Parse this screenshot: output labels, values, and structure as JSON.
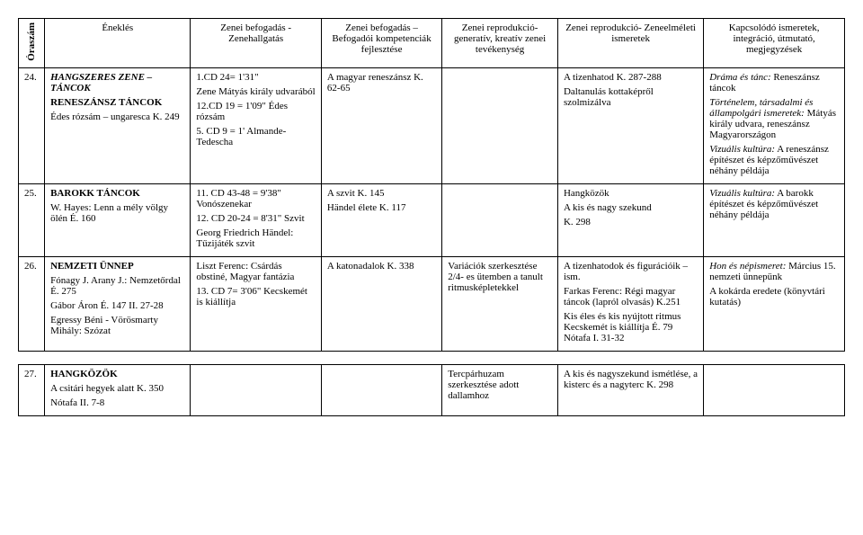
{
  "header": {
    "oraszam": "Óraszám",
    "c1": "Éneklés",
    "c2": "Zenei befogadás - Zenehallgatás",
    "c3": "Zenei befogadás – Befogadói kompetenciák fejlesztése",
    "c4": "Zenei reprodukció- generatív, kreatív zenei tevékenység",
    "c5": "Zenei reprodukció- Zeneelméleti ismeretek",
    "c6": "Kapcsolódó ismeretek, integráció, útmutató, megjegyzések"
  },
  "row24": {
    "num": "24.",
    "c1": {
      "title": "HANGSZERES ZENE – TÁNCOK",
      "l2": "RENESZÁNSZ TÁNCOK",
      "l3": "Édes rózsám – ungaresca K. 249"
    },
    "c2": {
      "l1": "1.CD 24= 1'31\"",
      "l2": "Zene Mátyás király udvarából",
      "l3": "12.CD 19 = 1'09\" Édes rózsám",
      "l4": "5. CD 9 = 1' Almande-Tedescha"
    },
    "c3": "A magyar reneszánsz K. 62-65",
    "c5": {
      "l1": "A tizenhatod K. 287-288",
      "l2": "Daltanulás kottaképről szolmizálva"
    },
    "c6": {
      "l1a": "Dráma és tánc:",
      "l1b": " Reneszánsz táncok",
      "l2a": "Történelem, társadalmi és állampolgári ismeretek:",
      "l2b": " Mátyás király udvara, reneszánsz Magyarországon",
      "l3a": "Vizuális kultúra:",
      "l3b": " A reneszánsz építészet és képzőművészet néhány példája"
    }
  },
  "row25": {
    "num": "25.",
    "c1": {
      "title": "BAROKK TÁNCOK",
      "l2": "W. Hayes: Lenn a mély völgy ölén É. 160"
    },
    "c2": {
      "l1": "11. CD 43-48 = 9'38\" Vonószenekar",
      "l2": "12. CD 20-24 = 8'31\" Szvit",
      "l3": "Georg Friedrich Händel: Tűzijáték szvit"
    },
    "c3": {
      "l1": "A szvit K. 145",
      "l2": "Händel élete K. 117"
    },
    "c5": {
      "l1": "Hangközök",
      "l2": "A kis és nagy szekund",
      "l3": "K. 298"
    },
    "c6": {
      "l1a": "Vizuális kultúra:",
      "l1b": " A barokk építészet és képzőművészet néhány példája"
    }
  },
  "row26": {
    "num": "26.",
    "c1": {
      "title": "NEMZETI ÜNNEP",
      "l2": "Fónagy J. Arany J.: Nemzetőrdal É. 275",
      "l3": "Gábor Áron É. 147 II. 27-28",
      "l4": "Egressy Béni - Vörösmarty Mihály: Szózat"
    },
    "c2": {
      "l1": "Liszt Ferenc: Csárdás obstiné, Magyar fantázia",
      "l2": "13. CD 7= 3'06\" Kecskemét is kiállítja"
    },
    "c3": "A katonadalok K. 338",
    "c4": "Variációk szerkesztése 2/4- es ütemben a tanult ritmusképletekkel",
    "c5": {
      "l1": "A tizenhatodok és figurációik – ism.",
      "l2": "Farkas Ferenc: Régi magyar táncok (lapról olvasás) K.251",
      "l3": "Kis éles és kis nyújtott ritmus Kecskemét is kiállítja É. 79 Nótafa I. 31-32"
    },
    "c6": {
      "l1a": "Hon és népismeret:",
      "l1b": " Március 15. nemzeti ünnepünk",
      "l2": "A kokárda eredete (könyvtári kutatás)"
    }
  },
  "row27": {
    "num": "27.",
    "c1": {
      "title": "HANGKÖZÖK",
      "l2": "A csitári hegyek alatt K. 350",
      "l3": "Nótafa II. 7-8"
    },
    "c4": "Tercpárhuzam szerkesztése adott dallamhoz",
    "c5": "A kis és nagyszekund ismétlése, a kisterc és a nagyterc K. 298"
  }
}
